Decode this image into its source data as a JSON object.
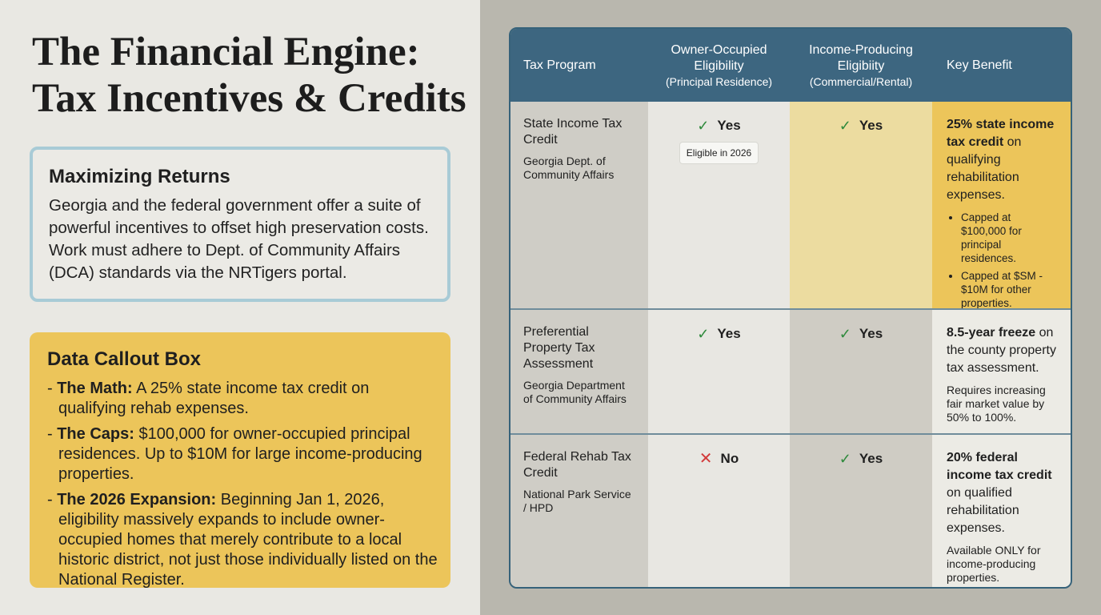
{
  "title": {
    "line1": "The Financial Engine:",
    "line2": "Tax Incentives & Credits"
  },
  "intro_box": {
    "heading": "Maximizing Returns",
    "body": "Georgia and the federal government offer a suite of powerful incentives to offset high preservation costs. Work must adhere to Dept. of Community Affairs (DCA) standards via the NRTigers portal."
  },
  "callout": {
    "heading": "Data Callout Box",
    "items": [
      {
        "label": "The Math:",
        "text": "A 25% state income tax credit on qualifying rehab expenses."
      },
      {
        "label": "The Caps:",
        "text": "$100,000 for owner-occupied principal residences. Up to $10M for large income-producing properties."
      },
      {
        "label": "The 2026 Expansion:",
        "text": "Beginning Jan 1, 2026, eligibility massively expands to include owner-occupied homes that merely contribute to a local historic district, not just those individually listed on the National Register."
      }
    ]
  },
  "table": {
    "headers": [
      {
        "title": "Tax Program"
      },
      {
        "title": "Owner-Occupied Eligibility",
        "sub": "(Principal Residence)"
      },
      {
        "title": "Income-Producing Eligibiity",
        "sub": "(Commercial/Rental)"
      },
      {
        "title": "Key Benefit"
      }
    ],
    "rows": [
      {
        "program": "State Income Tax Credit",
        "agency": "Georgia Dept. of Community Affairs",
        "owner": {
          "value": "Yes",
          "icon": "check-icon",
          "badge": "Eligible in 2026"
        },
        "income": {
          "value": "Yes",
          "icon": "check-icon"
        },
        "benefit": {
          "bold": "25% state income tax credit",
          "rest": " on qualifying rehabilitation expenses.",
          "bullets": [
            "Capped at $100,000 for principal residences.",
            "Capped at $SM - $10M for other properties."
          ]
        }
      },
      {
        "program": "Preferential Property Tax Assessment",
        "agency": "Georgia Department of Community Affairs",
        "owner": {
          "value": "Yes",
          "icon": "check-icon"
        },
        "income": {
          "value": "Yes",
          "icon": "check-icon"
        },
        "benefit": {
          "bold": "8.5-year freeze",
          "rest": " on the county property tax assessment.",
          "note": "Requires increasing fair market value by 50% to 100%."
        }
      },
      {
        "program": "Federal Rehab Tax Credit",
        "agency": "National Park Service / HPD",
        "owner": {
          "value": "No",
          "icon": "x-icon"
        },
        "income": {
          "value": "Yes",
          "icon": "check-icon"
        },
        "benefit": {
          "bold": "20% federal income tax credit",
          "rest": " on qualified rehabilitation expenses.",
          "note": "Available ONLY for income-producing properties."
        }
      }
    ]
  },
  "colors": {
    "header": "#3d6680",
    "highlight": "#ecc55a",
    "check": "#2f8a3c",
    "cross": "#d23a3a"
  }
}
